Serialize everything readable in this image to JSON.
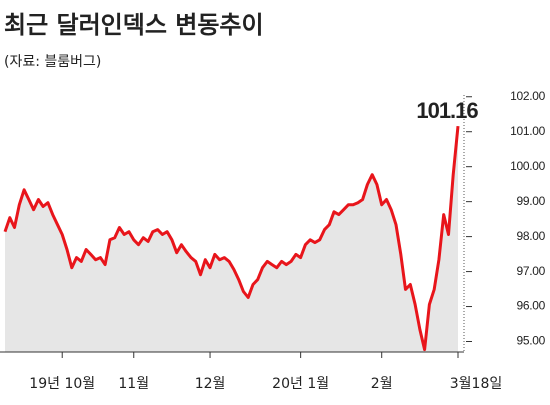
{
  "chart_data": {
    "type": "line",
    "title": "최근 달러인덱스 변동추이",
    "subtitle": "(자료: 블룸버그)",
    "annotation": "101.16",
    "categories": [
      null,
      null,
      null,
      null,
      null,
      null,
      null,
      null,
      null,
      null,
      null,
      null,
      "19년 10월",
      null,
      null,
      null,
      null,
      null,
      null,
      null,
      null,
      null,
      null,
      null,
      null,
      null,
      null,
      "11월",
      null,
      null,
      null,
      null,
      null,
      null,
      null,
      null,
      null,
      null,
      null,
      null,
      null,
      null,
      null,
      "12월",
      null,
      null,
      null,
      null,
      null,
      null,
      null,
      null,
      null,
      null,
      null,
      null,
      null,
      null,
      null,
      null,
      null,
      null,
      "20년 1월",
      null,
      null,
      null,
      null,
      null,
      null,
      null,
      null,
      null,
      null,
      null,
      null,
      null,
      null,
      null,
      null,
      "2월",
      null,
      null,
      null,
      null,
      null,
      null,
      null,
      null,
      null,
      null,
      null,
      null,
      null,
      null,
      null,
      "3월18일"
    ],
    "values": [
      98.14,
      98.54,
      98.26,
      98.91,
      99.34,
      99.06,
      98.77,
      99.06,
      98.86,
      98.97,
      98.63,
      98.34,
      98.06,
      97.63,
      97.11,
      97.4,
      97.29,
      97.63,
      97.49,
      97.34,
      97.4,
      97.2,
      97.91,
      97.97,
      98.26,
      98.06,
      98.14,
      97.91,
      97.77,
      97.97,
      97.86,
      98.14,
      98.2,
      98.06,
      98.14,
      97.91,
      97.54,
      97.77,
      97.57,
      97.4,
      97.29,
      96.91,
      97.34,
      97.11,
      97.49,
      97.34,
      97.4,
      97.29,
      97.06,
      96.77,
      96.43,
      96.26,
      96.63,
      96.77,
      97.11,
      97.29,
      97.2,
      97.11,
      97.29,
      97.2,
      97.29,
      97.49,
      97.4,
      97.77,
      97.91,
      97.83,
      97.91,
      98.2,
      98.34,
      98.71,
      98.63,
      98.77,
      98.91,
      98.91,
      98.97,
      99.06,
      99.49,
      99.77,
      99.49,
      98.91,
      99.06,
      98.77,
      98.34,
      97.49,
      96.49,
      96.63,
      96.06,
      95.34,
      94.77,
      96.06,
      96.49,
      97.34,
      98.63,
      98.06,
      99.77,
      101.16
    ],
    "color": "#e8151b",
    "fill": "#e6e6e6",
    "ylim": [
      94.7,
      102.05
    ],
    "yticks": [
      {
        "value": 95,
        "label": "95.00"
      },
      {
        "value": 96,
        "label": "96.00"
      },
      {
        "value": 97,
        "label": "97.00"
      },
      {
        "value": 98,
        "label": "98.00"
      },
      {
        "value": 99,
        "label": "99.00"
      },
      {
        "value": 100,
        "label": "100.00"
      },
      {
        "value": 101,
        "label": "101.00"
      },
      {
        "value": 102,
        "label": "102.00"
      }
    ]
  }
}
